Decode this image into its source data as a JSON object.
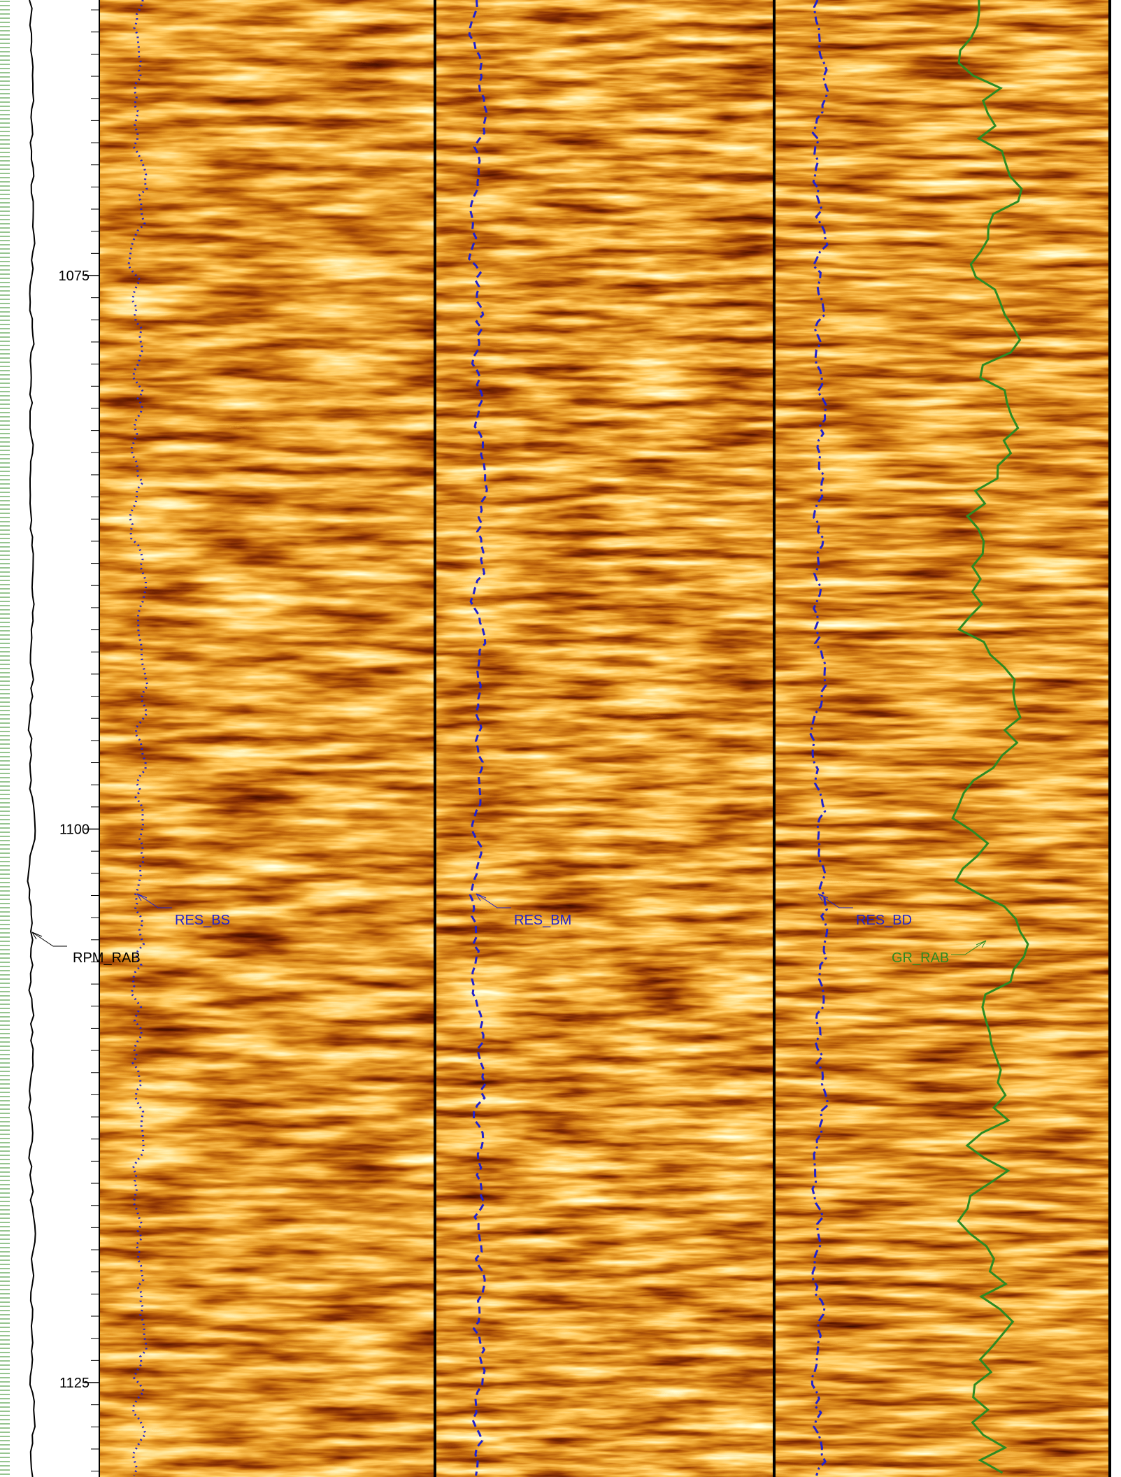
{
  "depth_track": {
    "ticks": [
      1075,
      1100,
      1125
    ]
  },
  "curve_labels": {
    "res_bs": "RES_BS",
    "res_bm": "RES_BM",
    "res_bd": "RES_BD",
    "rpm": "RPM_RAB",
    "gr": "GR_RAB"
  }
}
